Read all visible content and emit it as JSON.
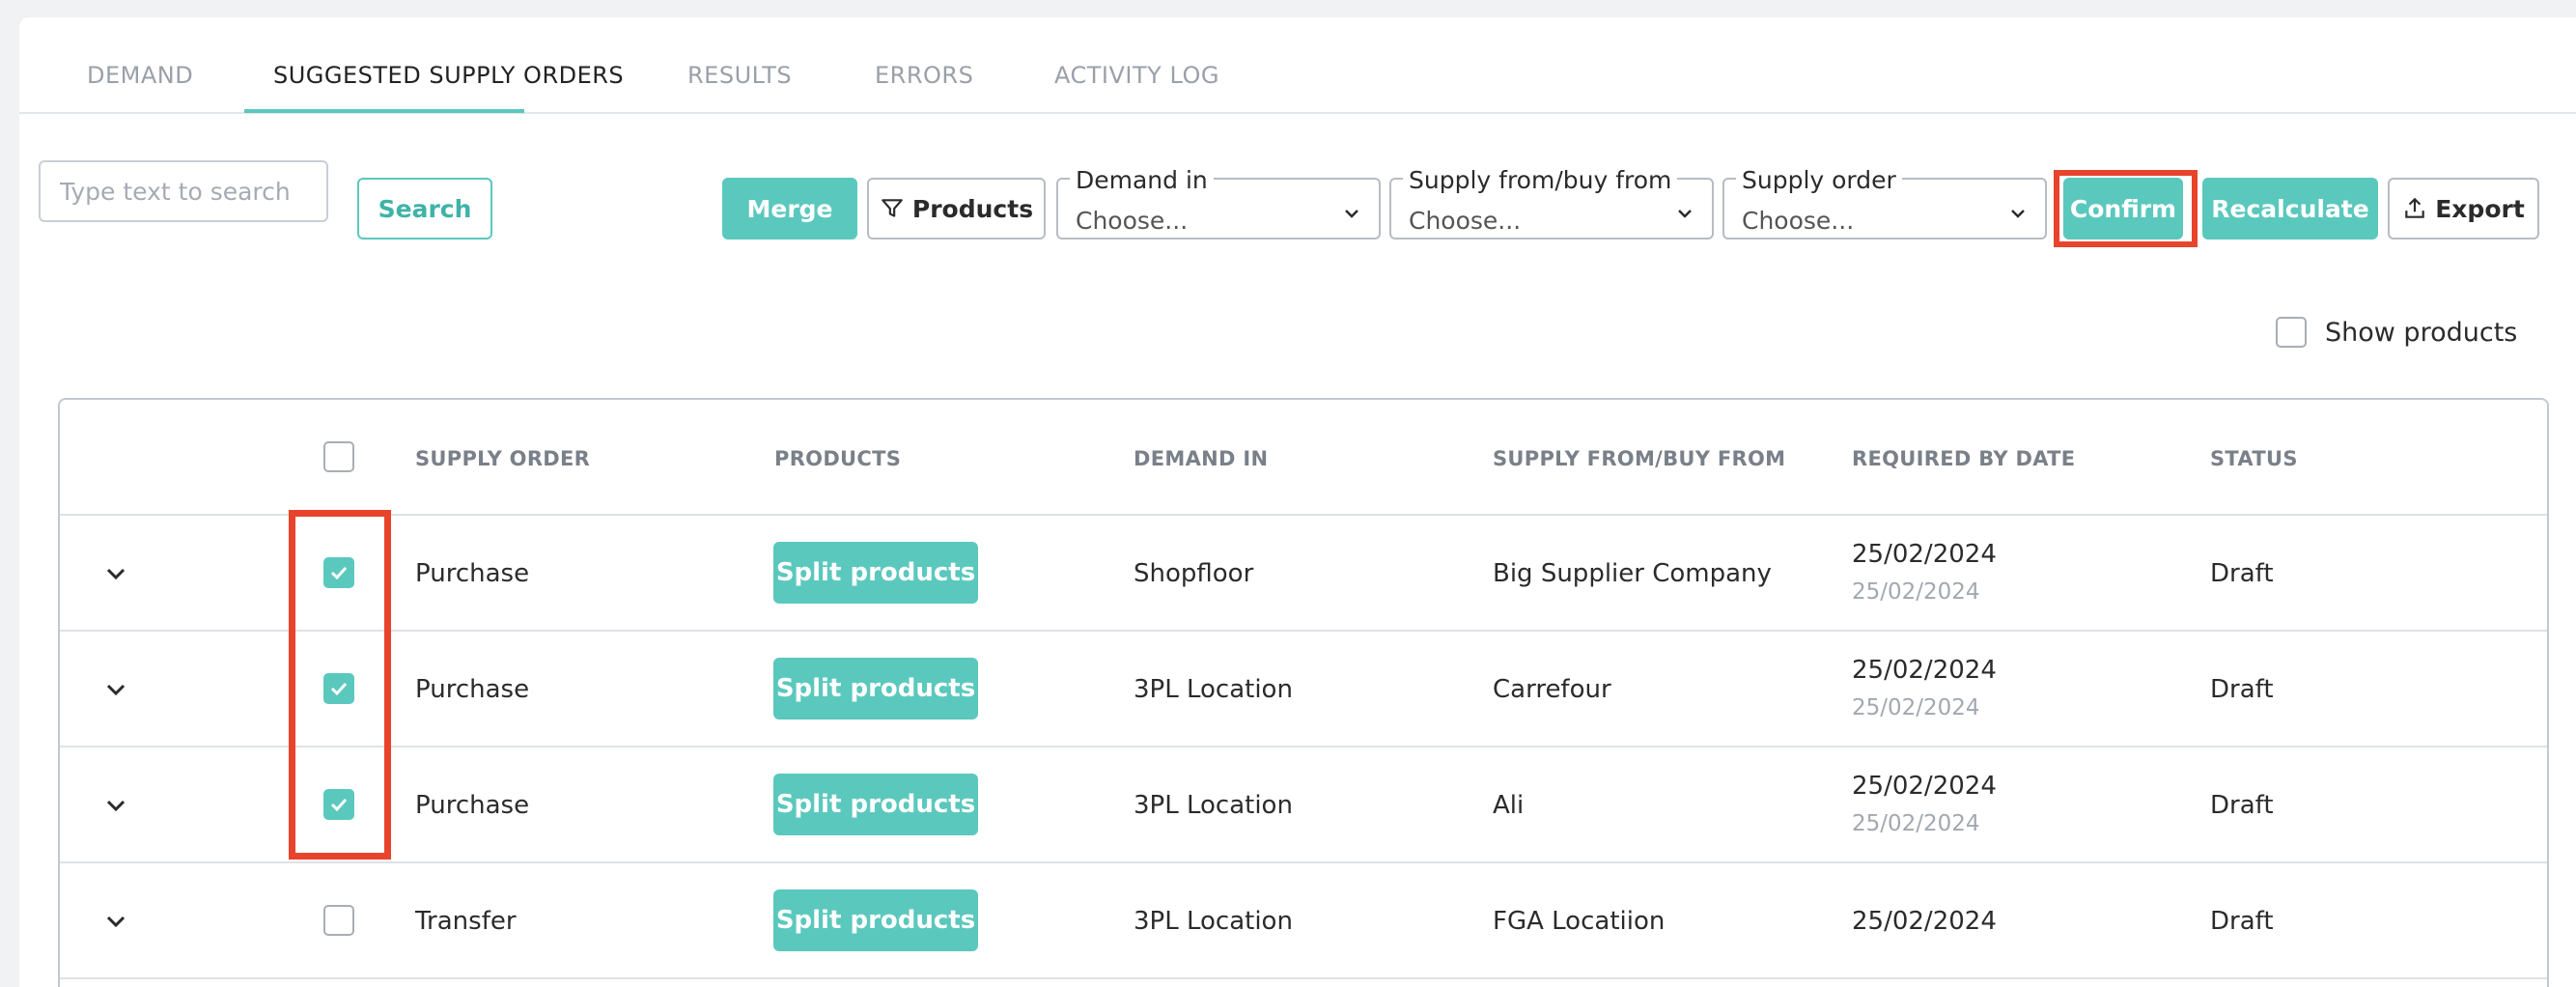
{
  "tabs": [
    {
      "label": "DEMAND",
      "active": false
    },
    {
      "label": "SUGGESTED SUPPLY ORDERS",
      "active": true
    },
    {
      "label": "RESULTS",
      "active": false
    },
    {
      "label": "ERRORS",
      "active": false
    },
    {
      "label": "ACTIVITY LOG",
      "active": false
    }
  ],
  "toolbar": {
    "search_placeholder": "Type text to search",
    "search_label": "Search",
    "merge_label": "Merge",
    "products_label": "Products",
    "filters": [
      {
        "legend": "Demand in",
        "value": "Choose..."
      },
      {
        "legend": "Supply from/buy from",
        "value": "Choose..."
      },
      {
        "legend": "Supply order",
        "value": "Choose..."
      }
    ],
    "confirm_label": "Confirm",
    "recalculate_label": "Recalculate",
    "export_label": "Export"
  },
  "show_products": {
    "label": "Show products",
    "checked": false
  },
  "table": {
    "headers": [
      "SUPPLY ORDER",
      "PRODUCTS",
      "DEMAND IN",
      "SUPPLY FROM/BUY FROM",
      "REQUIRED BY DATE",
      "STATUS"
    ],
    "rows": [
      {
        "checked": true,
        "supply_order": "Purchase",
        "products_button": "Split products",
        "demand_in": "Shopfloor",
        "supply_from": "Big Supplier Company",
        "required_by": "25/02/2024",
        "required_by_sub": "25/02/2024",
        "status": "Draft"
      },
      {
        "checked": true,
        "supply_order": "Purchase",
        "products_button": "Split products",
        "demand_in": "3PL Location",
        "supply_from": "Carrefour",
        "required_by": "25/02/2024",
        "required_by_sub": "25/02/2024",
        "status": "Draft"
      },
      {
        "checked": true,
        "supply_order": "Purchase",
        "products_button": "Split products",
        "demand_in": "3PL Location",
        "supply_from": "Ali",
        "required_by": "25/02/2024",
        "required_by_sub": "25/02/2024",
        "status": "Draft"
      },
      {
        "checked": false,
        "supply_order": "Transfer",
        "products_button": "Split products",
        "demand_in": "3PL Location",
        "supply_from": "FGA Locatiion",
        "required_by": "25/02/2024",
        "required_by_sub": "",
        "status": "Draft"
      }
    ]
  },
  "colors": {
    "accent": "#5bc8bd",
    "highlight": "#e8432b"
  }
}
